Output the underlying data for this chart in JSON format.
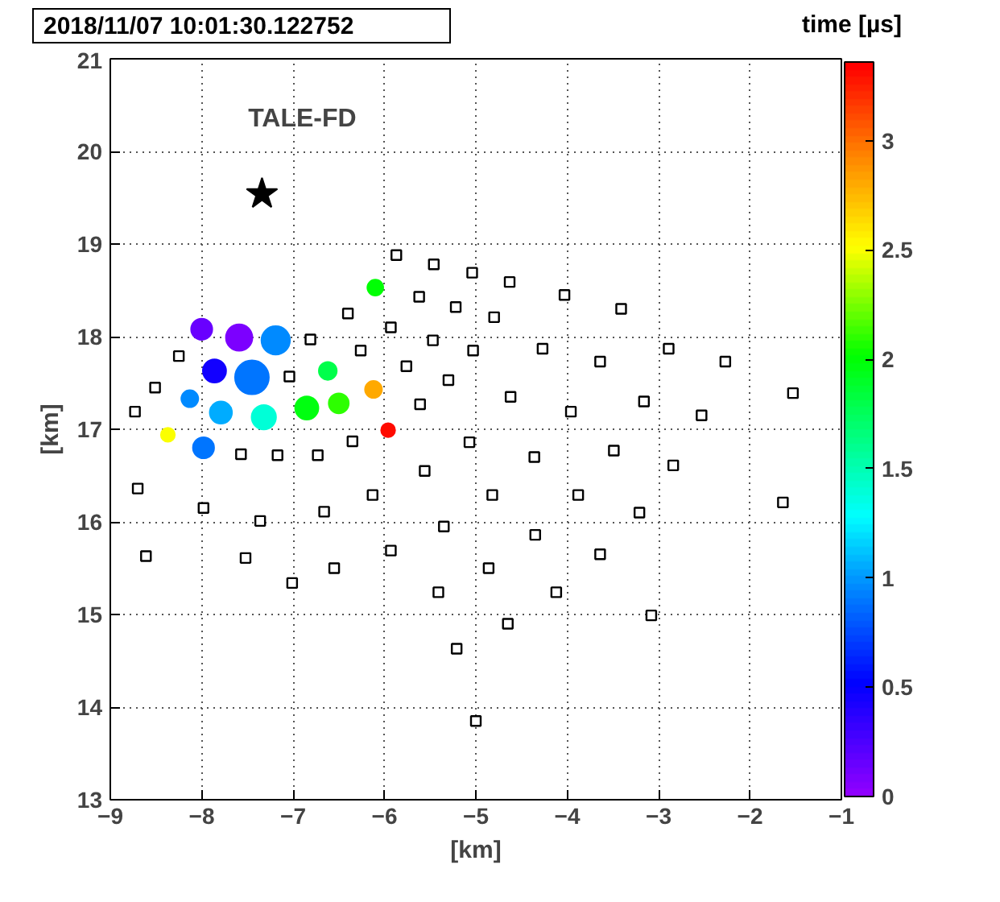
{
  "chart_data": {
    "type": "bubble",
    "title": "2018/11/07 10:01:30.122752",
    "xlabel": "[km]",
    "ylabel": "[km]",
    "clabel": "time [µs]",
    "xlim": [
      -9,
      -1
    ],
    "xticks": [
      -9,
      -8,
      -7,
      -6,
      -5,
      -4,
      -3,
      -2,
      -1
    ],
    "ylim": [
      13,
      21
    ],
    "yticks": [
      13,
      14,
      15,
      16,
      17,
      18,
      19,
      20,
      21
    ],
    "clim": [
      0,
      3.36
    ],
    "cticks": [
      0,
      0.5,
      1,
      1.5,
      2,
      2.5,
      3
    ],
    "grid": true,
    "series": [
      {
        "type": "bubble",
        "x": [
          -8.0,
          -7.59,
          -7.19,
          -7.86,
          -7.45,
          -8.13,
          -7.79,
          -7.32,
          -6.85,
          -6.5,
          -6.62,
          -6.1,
          -6.12,
          -5.96,
          -8.37,
          -7.98
        ],
        "values": [
          18.08,
          17.99,
          17.96,
          17.63,
          17.56,
          17.33,
          17.18,
          17.13,
          17.23,
          17.28,
          17.63,
          18.53,
          17.43,
          16.99,
          16.94,
          16.8
        ],
        "sizes": [
          0.39,
          0.61,
          0.71,
          0.47,
          1,
          0.25,
          0.43,
          0.52,
          0.47,
          0.35,
          0.28,
          0.22,
          0.25,
          0.17,
          0.17,
          0.39
        ],
        "cvalues": [
          0.15,
          0.1,
          0.95,
          0.45,
          0.9,
          0.95,
          1.05,
          1.4,
          1.95,
          2.1,
          1.8,
          2.0,
          2.8,
          3.3,
          2.5,
          0.9
        ],
        "colors": [
          "#6900ff",
          "#7c00ff",
          "#008aff",
          "#1200ff",
          "#0075ff",
          "#008aff",
          "#00acff",
          "#00ffd7",
          "#00ff10",
          "#2dff00",
          "#00ff4b",
          "#00ff04",
          "#ffa900",
          "#ff0b00",
          "#fbff00",
          "#0075ff"
        ]
      },
      {
        "type": "scatter",
        "marker": "square",
        "color": "#000000",
        "x": [
          -5.87,
          -5.46,
          -5.04,
          -4.63,
          -5.62,
          -4.03,
          -5.22,
          -3.41,
          -6.4,
          -4.8,
          -5.93,
          -6.81,
          -5.47,
          -2.89,
          -4.27,
          -6.26,
          -5.03,
          -8.25,
          -3.64,
          -2.27,
          -5.76,
          -7.04,
          -5.3,
          -8.51,
          -1.53,
          -4.62,
          -3.16,
          -5.61,
          -8.73,
          -3.96,
          -2.53,
          -6.35,
          -5.07,
          -3.49,
          -7.57,
          -7.17,
          -6.73,
          -4.36,
          -2.84,
          -5.56,
          -8.7,
          -4.82,
          -3.88,
          -6.13,
          -1.64,
          -7.98,
          -6.66,
          -3.21,
          -7.36,
          -5.35,
          -4.35,
          -5.93,
          -3.64,
          -8.61,
          -7.52,
          -4.86,
          -6.55,
          -7.01,
          -4.12,
          -5.41,
          -3.08,
          -4.65,
          -5.21,
          -5.0
        ],
        "values": [
          18.88,
          18.78,
          18.69,
          18.59,
          18.43,
          18.45,
          18.32,
          18.3,
          18.25,
          18.21,
          18.1,
          17.97,
          17.96,
          17.87,
          17.87,
          17.85,
          17.85,
          17.79,
          17.73,
          17.73,
          17.68,
          17.57,
          17.53,
          17.45,
          17.39,
          17.35,
          17.3,
          17.27,
          17.19,
          17.19,
          17.15,
          16.87,
          16.86,
          16.77,
          16.73,
          16.72,
          16.72,
          16.7,
          16.61,
          16.55,
          16.36,
          16.29,
          16.29,
          16.29,
          16.21,
          16.15,
          16.11,
          16.1,
          16.01,
          15.95,
          15.86,
          15.69,
          15.65,
          15.63,
          15.61,
          15.5,
          15.5,
          15.34,
          15.24,
          15.24,
          14.99,
          14.9,
          14.63,
          13.85
        ]
      },
      {
        "type": "scatter",
        "marker": "star",
        "name": "TALE-FD",
        "color": "#000000",
        "x": [
          -7.34
        ],
        "values": [
          19.54
        ]
      }
    ]
  }
}
